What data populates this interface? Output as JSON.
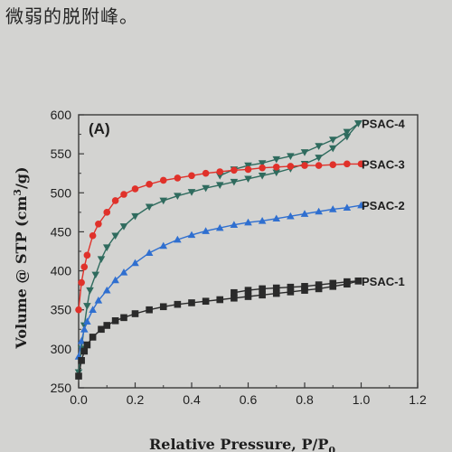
{
  "caption_text": "微弱的脱附峰。",
  "chart_data": {
    "type": "scatter",
    "panel_label": "(A)",
    "xlabel": "Relative Pressure, P/P",
    "xlabel_sub": "0",
    "ylabel_text": "Volume @ STP (cm",
    "ylabel_sup": "3",
    "ylabel_tail": "/g)",
    "xlim": [
      0.0,
      1.2
    ],
    "ylim": [
      250,
      600
    ],
    "xticks": [
      "0.0",
      "0.2",
      "0.4",
      "0.6",
      "0.8",
      "1.0",
      "1.2"
    ],
    "yticks": [
      "250",
      "300",
      "350",
      "400",
      "450",
      "500",
      "550",
      "600"
    ],
    "grid": false,
    "legend": "inline labels at right",
    "series": [
      {
        "name": "PSAC-4",
        "color": "#2f6b5e",
        "marker": "triangle-down",
        "adsorption": [
          [
            0.0,
            270
          ],
          [
            0.01,
            300
          ],
          [
            0.02,
            330
          ],
          [
            0.03,
            355
          ],
          [
            0.04,
            375
          ],
          [
            0.06,
            395
          ],
          [
            0.08,
            415
          ],
          [
            0.1,
            430
          ],
          [
            0.13,
            445
          ],
          [
            0.16,
            457
          ],
          [
            0.2,
            470
          ],
          [
            0.25,
            482
          ],
          [
            0.3,
            490
          ],
          [
            0.35,
            496
          ],
          [
            0.4,
            501
          ],
          [
            0.45,
            506
          ],
          [
            0.5,
            510
          ],
          [
            0.55,
            514
          ],
          [
            0.6,
            518
          ],
          [
            0.65,
            522
          ],
          [
            0.7,
            526
          ],
          [
            0.75,
            531
          ],
          [
            0.8,
            537
          ],
          [
            0.85,
            545
          ],
          [
            0.9,
            557
          ],
          [
            0.95,
            572
          ],
          [
            0.99,
            589
          ]
        ],
        "desorption": [
          [
            0.99,
            589
          ],
          [
            0.95,
            578
          ],
          [
            0.9,
            568
          ],
          [
            0.85,
            560
          ],
          [
            0.8,
            552
          ],
          [
            0.75,
            547
          ],
          [
            0.7,
            543
          ],
          [
            0.65,
            538
          ],
          [
            0.6,
            535
          ],
          [
            0.55,
            530
          ],
          [
            0.5,
            522
          ]
        ]
      },
      {
        "name": "PSAC-3",
        "color": "#e0312a",
        "marker": "circle",
        "adsorption": [
          [
            0.0,
            350
          ],
          [
            0.01,
            385
          ],
          [
            0.02,
            405
          ],
          [
            0.03,
            420
          ],
          [
            0.05,
            445
          ],
          [
            0.07,
            460
          ],
          [
            0.1,
            475
          ],
          [
            0.13,
            490
          ],
          [
            0.16,
            498
          ],
          [
            0.2,
            505
          ],
          [
            0.25,
            511
          ],
          [
            0.3,
            516
          ],
          [
            0.35,
            519
          ],
          [
            0.4,
            522
          ],
          [
            0.45,
            525
          ],
          [
            0.5,
            527
          ],
          [
            0.55,
            529
          ],
          [
            0.6,
            530
          ],
          [
            0.65,
            532
          ],
          [
            0.7,
            533
          ],
          [
            0.75,
            534
          ],
          [
            0.8,
            535
          ],
          [
            0.85,
            535
          ],
          [
            0.9,
            536
          ],
          [
            0.95,
            537
          ],
          [
            1.0,
            537
          ]
        ],
        "desorption": []
      },
      {
        "name": "PSAC-2",
        "color": "#2f6fd0",
        "marker": "triangle-up",
        "adsorption": [
          [
            0.0,
            290
          ],
          [
            0.01,
            310
          ],
          [
            0.02,
            325
          ],
          [
            0.03,
            335
          ],
          [
            0.05,
            350
          ],
          [
            0.07,
            362
          ],
          [
            0.1,
            375
          ],
          [
            0.13,
            388
          ],
          [
            0.16,
            398
          ],
          [
            0.2,
            410
          ],
          [
            0.25,
            423
          ],
          [
            0.3,
            432
          ],
          [
            0.35,
            440
          ],
          [
            0.4,
            446
          ],
          [
            0.45,
            451
          ],
          [
            0.5,
            455
          ],
          [
            0.55,
            459
          ],
          [
            0.6,
            462
          ],
          [
            0.65,
            464
          ],
          [
            0.7,
            467
          ],
          [
            0.75,
            470
          ],
          [
            0.8,
            473
          ],
          [
            0.85,
            476
          ],
          [
            0.9,
            479
          ],
          [
            0.95,
            481
          ],
          [
            1.0,
            484
          ]
        ],
        "desorption": []
      },
      {
        "name": "PSAC-1",
        "color": "#2a2a2a",
        "marker": "square",
        "adsorption": [
          [
            0.0,
            265
          ],
          [
            0.01,
            285
          ],
          [
            0.02,
            297
          ],
          [
            0.03,
            305
          ],
          [
            0.05,
            315
          ],
          [
            0.08,
            325
          ],
          [
            0.1,
            330
          ],
          [
            0.13,
            336
          ],
          [
            0.16,
            340
          ],
          [
            0.2,
            345
          ],
          [
            0.25,
            350
          ],
          [
            0.3,
            354
          ],
          [
            0.35,
            357
          ],
          [
            0.4,
            359
          ],
          [
            0.45,
            361
          ],
          [
            0.5,
            363
          ],
          [
            0.55,
            365
          ],
          [
            0.6,
            367
          ],
          [
            0.65,
            369
          ],
          [
            0.7,
            371
          ],
          [
            0.75,
            373
          ],
          [
            0.8,
            375
          ],
          [
            0.85,
            377
          ],
          [
            0.9,
            380
          ],
          [
            0.95,
            383
          ],
          [
            0.99,
            387
          ]
        ],
        "desorption": [
          [
            0.99,
            387
          ],
          [
            0.95,
            386
          ],
          [
            0.9,
            384
          ],
          [
            0.85,
            382
          ],
          [
            0.8,
            380
          ],
          [
            0.75,
            379
          ],
          [
            0.7,
            378
          ],
          [
            0.65,
            377
          ],
          [
            0.6,
            375
          ],
          [
            0.55,
            372
          ]
        ]
      }
    ]
  }
}
